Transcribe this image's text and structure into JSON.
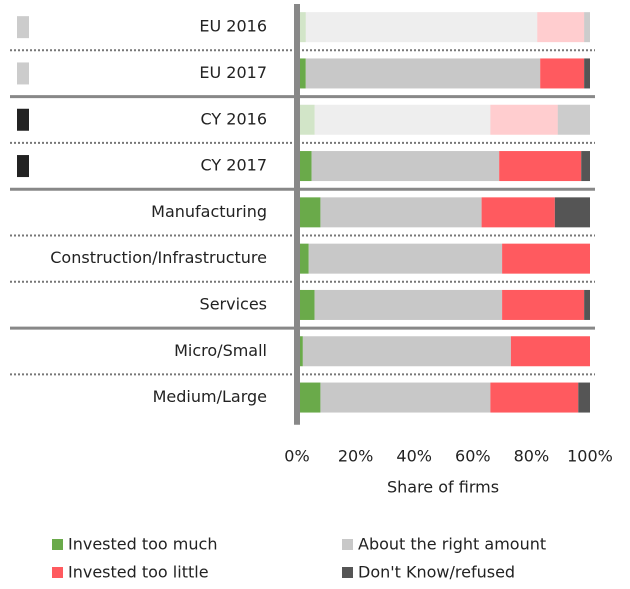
{
  "chart_data": {
    "type": "stacked_bar_horizontal",
    "categories": [
      "EU 2016",
      "EU 2017",
      "CY 2016",
      "CY 2017",
      "Manufacturing",
      "Construction/Infrastructure",
      "Services",
      "Micro/Small",
      "Medium/Large"
    ],
    "series": [
      {
        "name": "Invested too much",
        "color": "#6aaa4a",
        "values": [
          3,
          3,
          6,
          5,
          8,
          4,
          6,
          2,
          8
        ]
      },
      {
        "name": "About the right amount",
        "color": "#c8c8c8",
        "values": [
          79,
          80,
          60,
          64,
          55,
          66,
          64,
          71,
          58
        ]
      },
      {
        "name": "Invested too little",
        "color": "#ff5a5f",
        "values": [
          16,
          15,
          23,
          28,
          25,
          30,
          28,
          27,
          30
        ]
      },
      {
        "name": "Don't Know/refused",
        "color": "#555555",
        "values": [
          2,
          2,
          11,
          3,
          12,
          0,
          2,
          0,
          4
        ]
      }
    ],
    "faded": [
      true,
      false,
      true,
      false,
      false,
      false,
      false,
      false,
      false
    ],
    "marker_colors": [
      "#cccccc",
      "#cccccc",
      "#222222",
      "#222222",
      null,
      null,
      null,
      null,
      null
    ],
    "solid_separators_after": [
      1,
      3,
      6
    ],
    "xlim": [
      0,
      100
    ],
    "xticks": [
      {
        "value": 0,
        "label": "0%"
      },
      {
        "value": 20,
        "label": "20%"
      },
      {
        "value": 40,
        "label": "40%"
      },
      {
        "value": 60,
        "label": "60%"
      },
      {
        "value": 80,
        "label": "80%"
      },
      {
        "value": 100,
        "label": "100%"
      }
    ],
    "xlabel": "Share of firms"
  }
}
